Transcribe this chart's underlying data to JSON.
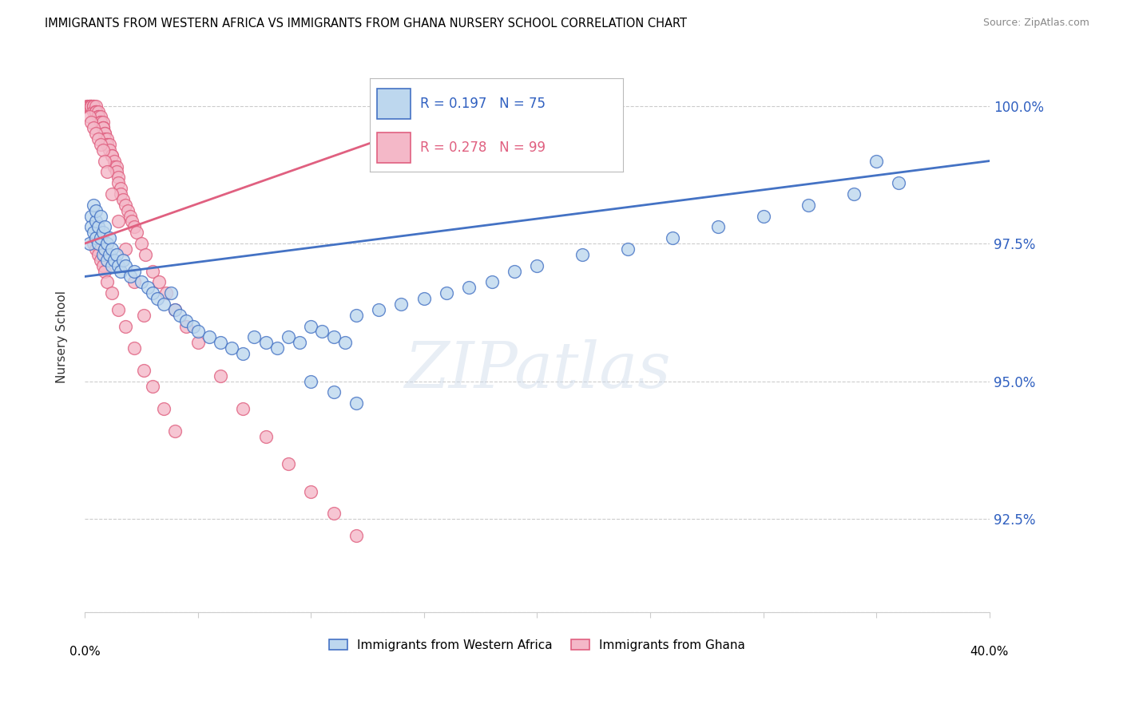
{
  "title": "IMMIGRANTS FROM WESTERN AFRICA VS IMMIGRANTS FROM GHANA NURSERY SCHOOL CORRELATION CHART",
  "source": "Source: ZipAtlas.com",
  "ylabel": "Nursery School",
  "y_tick_labels": [
    "100.0%",
    "97.5%",
    "95.0%",
    "92.5%"
  ],
  "y_tick_values": [
    1.0,
    0.975,
    0.95,
    0.925
  ],
  "x_range": [
    0.0,
    0.4
  ],
  "y_range": [
    0.908,
    1.008
  ],
  "legend_blue_r": "0.197",
  "legend_blue_n": "75",
  "legend_pink_r": "0.278",
  "legend_pink_n": "99",
  "legend_blue_label": "Immigrants from Western Africa",
  "legend_pink_label": "Immigrants from Ghana",
  "blue_fill": "#bdd7ee",
  "pink_fill": "#f4b8c8",
  "blue_edge": "#4472c4",
  "pink_edge": "#e06080",
  "blue_line": "#4472c4",
  "pink_line": "#e06080",
  "watermark": "ZIPatlas",
  "blue_scatter_x": [
    0.002,
    0.003,
    0.003,
    0.004,
    0.004,
    0.005,
    0.005,
    0.005,
    0.006,
    0.006,
    0.007,
    0.007,
    0.008,
    0.008,
    0.009,
    0.009,
    0.01,
    0.01,
    0.011,
    0.011,
    0.012,
    0.012,
    0.013,
    0.014,
    0.015,
    0.016,
    0.017,
    0.018,
    0.02,
    0.022,
    0.025,
    0.028,
    0.03,
    0.032,
    0.035,
    0.038,
    0.04,
    0.042,
    0.045,
    0.048,
    0.05,
    0.055,
    0.06,
    0.065,
    0.07,
    0.075,
    0.08,
    0.085,
    0.09,
    0.095,
    0.1,
    0.105,
    0.11,
    0.115,
    0.12,
    0.13,
    0.14,
    0.15,
    0.16,
    0.17,
    0.18,
    0.19,
    0.2,
    0.22,
    0.24,
    0.26,
    0.28,
    0.3,
    0.32,
    0.34,
    0.36,
    0.1,
    0.11,
    0.12,
    0.35
  ],
  "blue_scatter_y": [
    0.975,
    0.98,
    0.978,
    0.982,
    0.977,
    0.979,
    0.976,
    0.981,
    0.975,
    0.978,
    0.976,
    0.98,
    0.973,
    0.977,
    0.974,
    0.978,
    0.972,
    0.975,
    0.973,
    0.976,
    0.971,
    0.974,
    0.972,
    0.973,
    0.971,
    0.97,
    0.972,
    0.971,
    0.969,
    0.97,
    0.968,
    0.967,
    0.966,
    0.965,
    0.964,
    0.966,
    0.963,
    0.962,
    0.961,
    0.96,
    0.959,
    0.958,
    0.957,
    0.956,
    0.955,
    0.958,
    0.957,
    0.956,
    0.958,
    0.957,
    0.96,
    0.959,
    0.958,
    0.957,
    0.962,
    0.963,
    0.964,
    0.965,
    0.966,
    0.967,
    0.968,
    0.97,
    0.971,
    0.973,
    0.974,
    0.976,
    0.978,
    0.98,
    0.982,
    0.984,
    0.986,
    0.95,
    0.948,
    0.946,
    0.99
  ],
  "pink_scatter_x": [
    0.001,
    0.001,
    0.002,
    0.002,
    0.002,
    0.003,
    0.003,
    0.003,
    0.003,
    0.004,
    0.004,
    0.004,
    0.004,
    0.005,
    0.005,
    0.005,
    0.005,
    0.005,
    0.006,
    0.006,
    0.006,
    0.006,
    0.007,
    0.007,
    0.007,
    0.007,
    0.008,
    0.008,
    0.008,
    0.008,
    0.009,
    0.009,
    0.009,
    0.01,
    0.01,
    0.01,
    0.011,
    0.011,
    0.012,
    0.012,
    0.013,
    0.013,
    0.014,
    0.014,
    0.015,
    0.015,
    0.016,
    0.016,
    0.017,
    0.018,
    0.019,
    0.02,
    0.021,
    0.022,
    0.023,
    0.025,
    0.027,
    0.03,
    0.033,
    0.036,
    0.04,
    0.045,
    0.05,
    0.06,
    0.07,
    0.08,
    0.09,
    0.1,
    0.11,
    0.12,
    0.004,
    0.005,
    0.006,
    0.007,
    0.008,
    0.009,
    0.01,
    0.012,
    0.015,
    0.018,
    0.022,
    0.026,
    0.03,
    0.035,
    0.04,
    0.002,
    0.003,
    0.004,
    0.005,
    0.006,
    0.007,
    0.008,
    0.009,
    0.01,
    0.012,
    0.015,
    0.018,
    0.022,
    0.026
  ],
  "pink_scatter_y": [
    1.0,
    1.0,
    1.0,
    1.0,
    1.0,
    1.0,
    1.0,
    1.0,
    1.0,
    1.0,
    1.0,
    1.0,
    0.999,
    1.0,
    0.999,
    0.999,
    0.999,
    0.999,
    0.999,
    0.998,
    0.998,
    0.998,
    0.998,
    0.997,
    0.997,
    0.997,
    0.997,
    0.996,
    0.996,
    0.996,
    0.995,
    0.995,
    0.994,
    0.994,
    0.993,
    0.993,
    0.993,
    0.992,
    0.991,
    0.991,
    0.99,
    0.989,
    0.989,
    0.988,
    0.987,
    0.986,
    0.985,
    0.984,
    0.983,
    0.982,
    0.981,
    0.98,
    0.979,
    0.978,
    0.977,
    0.975,
    0.973,
    0.97,
    0.968,
    0.966,
    0.963,
    0.96,
    0.957,
    0.951,
    0.945,
    0.94,
    0.935,
    0.93,
    0.926,
    0.922,
    0.975,
    0.974,
    0.973,
    0.972,
    0.971,
    0.97,
    0.968,
    0.966,
    0.963,
    0.96,
    0.956,
    0.952,
    0.949,
    0.945,
    0.941,
    0.998,
    0.997,
    0.996,
    0.995,
    0.994,
    0.993,
    0.992,
    0.99,
    0.988,
    0.984,
    0.979,
    0.974,
    0.968,
    0.962
  ]
}
